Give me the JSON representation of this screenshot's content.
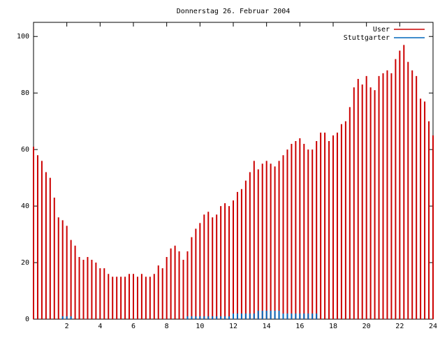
{
  "chart_data": {
    "type": "impulse",
    "title": "Donnerstag 26. Februar 2004",
    "x": [
      0,
      0.25,
      0.5,
      0.75,
      1,
      1.25,
      1.5,
      1.75,
      2,
      2.25,
      2.5,
      2.75,
      3,
      3.25,
      3.5,
      3.75,
      4,
      4.25,
      4.5,
      4.75,
      5,
      5.25,
      5.5,
      5.75,
      6,
      6.25,
      6.5,
      6.75,
      7,
      7.25,
      7.5,
      7.75,
      8,
      8.25,
      8.5,
      8.75,
      9,
      9.25,
      9.5,
      9.75,
      10,
      10.25,
      10.5,
      10.75,
      11,
      11.25,
      11.5,
      11.75,
      12,
      12.25,
      12.5,
      12.75,
      13,
      13.25,
      13.5,
      13.75,
      14,
      14.25,
      14.5,
      14.75,
      15,
      15.25,
      15.5,
      15.75,
      16,
      16.25,
      16.5,
      16.75,
      17,
      17.25,
      17.5,
      17.75,
      18,
      18.25,
      18.5,
      18.75,
      19,
      19.25,
      19.5,
      19.75,
      20,
      20.25,
      20.5,
      20.75,
      21,
      21.25,
      21.5,
      21.75,
      22,
      22.25,
      22.5,
      22.75,
      23,
      23.25,
      23.5,
      23.75,
      24
    ],
    "series": [
      {
        "name": "User",
        "color": "#cc0000",
        "values": [
          61,
          58,
          56,
          52,
          50,
          43,
          36,
          35,
          33,
          28,
          26,
          22,
          21,
          22,
          21,
          20,
          18,
          18,
          16,
          15,
          15,
          15,
          15,
          16,
          16,
          15,
          16,
          15,
          15,
          16,
          19,
          18,
          22,
          25,
          26,
          24,
          21,
          24,
          29,
          32,
          34,
          37,
          38,
          36,
          37,
          40,
          41,
          40,
          42,
          45,
          46,
          49,
          52,
          56,
          53,
          55,
          56,
          55,
          54,
          56,
          58,
          60,
          62,
          63,
          64,
          62,
          60,
          60,
          63,
          66,
          66,
          63,
          65,
          66,
          69,
          70,
          75,
          82,
          85,
          83,
          86,
          82,
          81,
          86,
          87,
          88,
          87,
          92,
          95,
          97,
          91,
          88,
          86,
          78,
          77,
          70,
          65
        ]
      },
      {
        "name": "Stuttgarter",
        "color": "#0066bb",
        "values": [
          0,
          0,
          0,
          0,
          0,
          0,
          0,
          1,
          1,
          1,
          0,
          0,
          0,
          0,
          0,
          0,
          0,
          0,
          0,
          0,
          0,
          0,
          0,
          0,
          0,
          0,
          0,
          0,
          0,
          0,
          0,
          0,
          0,
          0,
          0,
          0,
          0,
          1,
          1,
          1,
          1,
          1,
          1,
          1,
          1,
          1,
          1,
          1,
          2,
          2,
          2,
          2,
          2,
          2,
          3,
          3,
          3,
          3,
          3,
          3,
          2,
          2,
          2,
          2,
          2,
          2,
          2,
          2,
          2,
          0,
          0,
          0,
          0,
          0,
          0,
          0,
          0,
          0,
          0,
          0,
          0,
          0,
          0,
          0,
          0,
          0,
          0,
          0,
          0,
          0,
          0,
          0,
          0,
          0,
          0,
          0,
          0
        ]
      }
    ],
    "xlim": [
      0,
      24
    ],
    "xticks": [
      2,
      4,
      6,
      8,
      10,
      12,
      14,
      16,
      18,
      20,
      22,
      24
    ],
    "ylim": [
      0,
      105
    ],
    "yticks": [
      0,
      20,
      40,
      60,
      80,
      100
    ],
    "legend": "upper right"
  }
}
